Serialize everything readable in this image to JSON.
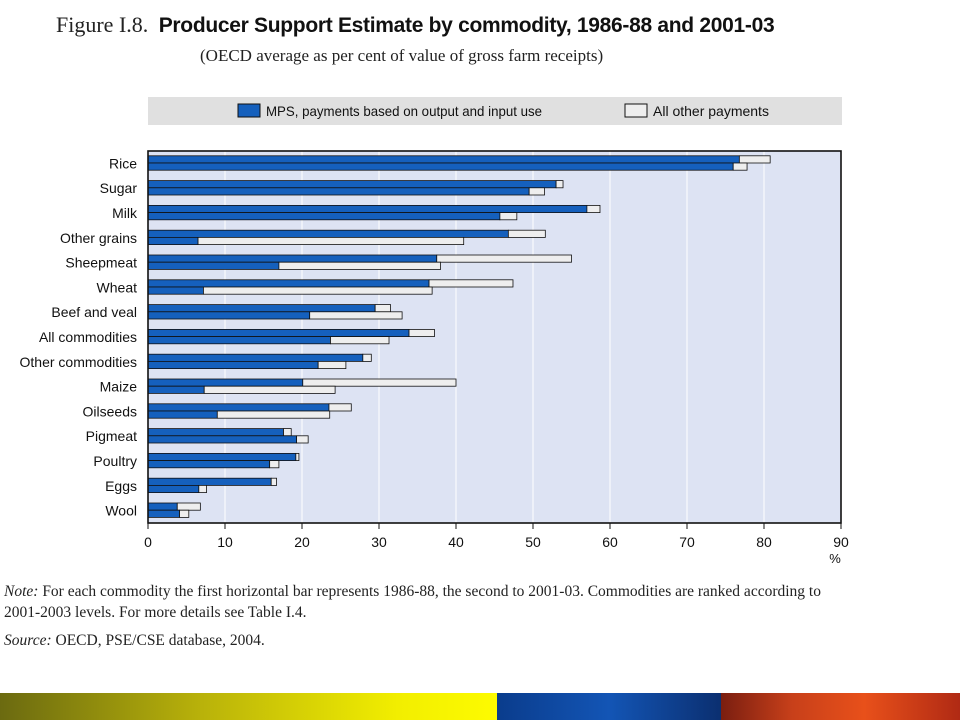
{
  "figure": {
    "number": "Figure I.8.",
    "title": "Producer Support Estimate by commodity, 1986-88 and 2001-03",
    "subtitle": "(OECD average as per cent of value of gross farm receipts)"
  },
  "note": {
    "label": "Note:",
    "text": "For each commodity the first horizontal bar represents 1986-88, the second to 2001-03. Commodities are ranked according to 2001-2003 levels. For more details see Table I.4."
  },
  "source": {
    "label": "Source:",
    "text": "OECD, PSE/CSE database, 2004."
  },
  "colors": {
    "mps": "#1560bd",
    "other": "#eeeeee",
    "plot_bg": "#dde3f3",
    "legend_bg": "#e0e0e0"
  },
  "chart_data": {
    "type": "bar",
    "orientation": "horizontal",
    "stacked": true,
    "x_unit": "%",
    "xlim": [
      0,
      90
    ],
    "x_ticks": [
      0,
      10,
      20,
      30,
      40,
      50,
      60,
      70,
      80,
      90
    ],
    "grid": true,
    "legend_position": "top",
    "legend": [
      "MPS, payments based on output and input use",
      "All other payments"
    ],
    "categories": [
      "Rice",
      "Sugar",
      "Milk",
      "Other grains",
      "Sheepmeat",
      "Wheat",
      "Beef and veal",
      "All commodities",
      "Other commodities",
      "Maize",
      "Oilseeds",
      "Pigmeat",
      "Poultry",
      "Eggs",
      "Wool"
    ],
    "periods": [
      "1986-88",
      "2001-03"
    ],
    "bars": [
      {
        "category": "Rice",
        "period": "1986-88",
        "mps": 76.8,
        "other": 4.0
      },
      {
        "category": "Rice",
        "period": "2001-03",
        "mps": 76.0,
        "other": 1.8
      },
      {
        "category": "Sugar",
        "period": "1986-88",
        "mps": 53.0,
        "other": 0.9
      },
      {
        "category": "Sugar",
        "period": "2001-03",
        "mps": 49.5,
        "other": 2.0
      },
      {
        "category": "Milk",
        "period": "1986-88",
        "mps": 57.0,
        "other": 1.7
      },
      {
        "category": "Milk",
        "period": "2001-03",
        "mps": 45.7,
        "other": 2.2
      },
      {
        "category": "Other grains",
        "period": "1986-88",
        "mps": 46.8,
        "other": 4.8
      },
      {
        "category": "Other grains",
        "period": "2001-03",
        "mps": 6.5,
        "other": 34.5
      },
      {
        "category": "Sheepmeat",
        "period": "1986-88",
        "mps": 37.5,
        "other": 17.5
      },
      {
        "category": "Sheepmeat",
        "period": "2001-03",
        "mps": 17.0,
        "other": 21.0
      },
      {
        "category": "Wheat",
        "period": "1986-88",
        "mps": 36.5,
        "other": 10.9
      },
      {
        "category": "Wheat",
        "period": "2001-03",
        "mps": 7.2,
        "other": 29.7
      },
      {
        "category": "Beef and veal",
        "period": "1986-88",
        "mps": 29.5,
        "other": 2.0
      },
      {
        "category": "Beef and veal",
        "period": "2001-03",
        "mps": 21.0,
        "other": 12.0
      },
      {
        "category": "All commodities",
        "period": "1986-88",
        "mps": 33.9,
        "other": 3.3
      },
      {
        "category": "All commodities",
        "period": "2001-03",
        "mps": 23.7,
        "other": 7.6
      },
      {
        "category": "Other commodities",
        "period": "1986-88",
        "mps": 27.9,
        "other": 1.1
      },
      {
        "category": "Other commodities",
        "period": "2001-03",
        "mps": 22.1,
        "other": 3.6
      },
      {
        "category": "Maize",
        "period": "1986-88",
        "mps": 20.1,
        "other": 19.9
      },
      {
        "category": "Maize",
        "period": "2001-03",
        "mps": 7.3,
        "other": 17.0
      },
      {
        "category": "Oilseeds",
        "period": "1986-88",
        "mps": 23.5,
        "other": 2.9
      },
      {
        "category": "Oilseeds",
        "period": "2001-03",
        "mps": 9.0,
        "other": 14.6
      },
      {
        "category": "Pigmeat",
        "period": "1986-88",
        "mps": 17.6,
        "other": 1.0
      },
      {
        "category": "Pigmeat",
        "period": "2001-03",
        "mps": 19.3,
        "other": 1.5
      },
      {
        "category": "Poultry",
        "period": "1986-88",
        "mps": 19.2,
        "other": 0.4
      },
      {
        "category": "Poultry",
        "period": "2001-03",
        "mps": 15.8,
        "other": 1.2
      },
      {
        "category": "Eggs",
        "period": "1986-88",
        "mps": 16.0,
        "other": 0.7
      },
      {
        "category": "Eggs",
        "period": "2001-03",
        "mps": 6.6,
        "other": 1.0
      },
      {
        "category": "Wool",
        "period": "1986-88",
        "mps": 3.8,
        "other": 3.0
      },
      {
        "category": "Wool",
        "period": "2001-03",
        "mps": 4.1,
        "other": 1.2
      }
    ]
  }
}
